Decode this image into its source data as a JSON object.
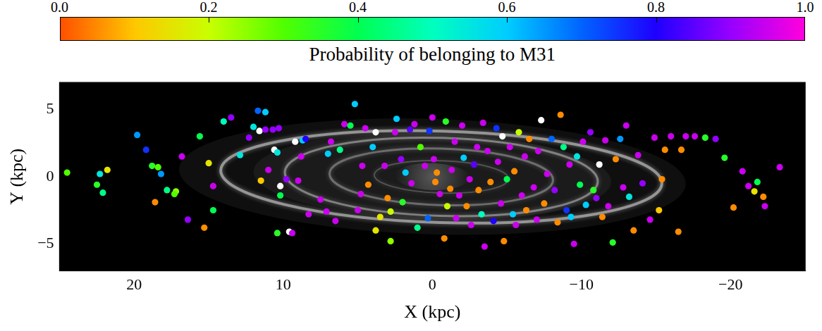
{
  "chart_data": {
    "type": "scatter",
    "x_label": "X (kpc)",
    "y_label": "Y (kpc)",
    "xlim": [
      25,
      -25
    ],
    "ylim": [
      -7,
      7
    ],
    "xticks": [
      20,
      10,
      0,
      {
        "value": -10,
        "label": "−10"
      },
      {
        "value": -20,
        "label": "−20"
      }
    ],
    "yticks": [
      {
        "value": -5,
        "label": "−5"
      },
      0,
      5
    ],
    "grid": false,
    "marker": "circle",
    "colorbar": {
      "label": "Probability of belonging to M31",
      "range": [
        0,
        1
      ],
      "ticks": [
        {
          "value": 0,
          "label": "0.0"
        },
        0.2,
        0.4,
        0.6,
        0.8,
        {
          "value": 1,
          "label": "1.0"
        }
      ]
    },
    "x": [
      24.5,
      22.5,
      22.3,
      22.1,
      21.8,
      19.8,
      19.2,
      18.8,
      18.4,
      18.2,
      18.6,
      17.8,
      17.2,
      17.3,
      16.8,
      16.4,
      15.6,
      15.3,
      15.0,
      14.7,
      14.7,
      14.0,
      13.5,
      12.9,
      12.3,
      12.0,
      11.7,
      11.2,
      11.6,
      11.2,
      10.7,
      10.3,
      10.6,
      10.4,
      10.2,
      10.4,
      9.6,
      9.4,
      9.2,
      8.7,
      8.5,
      8.3,
      11.5,
      11.0,
      10.2,
      9.8,
      9.0,
      8.8,
      7.5,
      7.1,
      7.0,
      6.8,
      6.5,
      6.2,
      5.9,
      5.5,
      5.2,
      5.0,
      4.8,
      4.7,
      4.5,
      4.3,
      4.0,
      3.8,
      3.8,
      3.5,
      3.2,
      3.0,
      2.8,
      2.8,
      2.5,
      2.4,
      2.1,
      2.0,
      1.8,
      1.5,
      1.4,
      1.2,
      1.0,
      0.8,
      0.5,
      0.3,
      0.2,
      0.0,
      -0.1,
      -0.2,
      -0.3,
      -0.5,
      -0.8,
      -0.9,
      -1.0,
      -1.2,
      -1.3,
      -1.5,
      -1.6,
      -1.8,
      -2.0,
      -2.1,
      -2.3,
      -2.5,
      -2.6,
      -2.8,
      -3.0,
      -3.1,
      -3.3,
      -3.4,
      -3.5,
      -3.7,
      -3.9,
      -4.1,
      -4.3,
      -4.4,
      -4.6,
      -4.7,
      -4.8,
      -5.0,
      -5.2,
      -5.4,
      -5.5,
      -5.6,
      -5.8,
      -6.0,
      -6.2,
      -6.3,
      -6.5,
      -6.8,
      -7.0,
      -7.1,
      -7.3,
      -7.5,
      -7.7,
      -8.0,
      -8.2,
      -8.4,
      -8.6,
      -8.8,
      -9.0,
      -9.2,
      -9.3,
      -9.5,
      -9.7,
      -9.9,
      -10.1,
      -10.3,
      -10.6,
      -10.8,
      -11.0,
      -11.2,
      -11.4,
      -11.6,
      -11.8,
      -12.1,
      -12.3,
      -12.6,
      -12.8,
      -13.0,
      -13.2,
      -13.5,
      -13.8,
      -14.1,
      -14.6,
      -14.9,
      -15.2,
      -15.4,
      -15.6,
      -16.0,
      -16.5,
      -17.0,
      -17.6,
      -18.3,
      -19.0,
      -19.6,
      -20.2,
      -20.8,
      -21.2,
      -21.6,
      -21.8,
      -22.2,
      -22.3,
      -23.3,
      -16.7
    ],
    "y": [
      0.3,
      -0.6,
      0.2,
      -1.2,
      0.5,
      3.1,
      2.0,
      0.8,
      0.7,
      0.2,
      -1.9,
      -1.0,
      -1.1,
      -1.3,
      1.5,
      -3.2,
      3.0,
      -3.8,
      1.0,
      -0.7,
      -2.5,
      4.1,
      4.4,
      1.6,
      2.9,
      3.7,
      4.9,
      4.8,
      3.4,
      3.5,
      3.5,
      3.6,
      2.0,
      1.8,
      -0.7,
      -4.2,
      -4.1,
      -4.2,
      2.6,
      2.7,
      2.8,
      -2.8,
      -0.3,
      0.5,
      -1.4,
      -0.2,
      -0.3,
      1.5,
      -1.7,
      -2.6,
      1.7,
      2.6,
      -3.3,
      2.0,
      3.9,
      3.8,
      5.4,
      -2.5,
      -1.3,
      0.8,
      3.6,
      -0.6,
      2.2,
      3.3,
      -4.0,
      -3.0,
      0.8,
      -1.6,
      -4.8,
      -2.6,
      3.3,
      4.3,
      1.3,
      -1.9,
      0.3,
      3.5,
      -0.5,
      3.9,
      -3.8,
      2.2,
      0.8,
      -3.1,
      3.4,
      4.4,
      1.3,
      -0.4,
      0.3,
      -1.3,
      -4.6,
      4.1,
      -2.2,
      -0.9,
      0.5,
      2.6,
      -3.1,
      -1.4,
      3.8,
      1.4,
      -2.2,
      -0.2,
      -3.6,
      0.9,
      2.2,
      -1.0,
      -2.8,
      4.0,
      -5.2,
      1.9,
      -0.4,
      -3.3,
      3.6,
      1.1,
      -2.0,
      3.0,
      -4.8,
      -0.2,
      2.2,
      -2.8,
      0.4,
      -3.6,
      3.3,
      -1.4,
      1.5,
      -2.5,
      2.8,
      -0.8,
      -3.2,
      1.9,
      4.2,
      -2.0,
      0.2,
      2.8,
      -1.0,
      -3.4,
      4.6,
      2.2,
      -2.5,
      0.9,
      -3.0,
      -5.0,
      1.5,
      -0.6,
      2.6,
      -2.1,
      3.3,
      -1.0,
      -1.6,
      0.9,
      -3.0,
      2.7,
      -2.2,
      -4.9,
      1.3,
      2.8,
      -0.8,
      3.8,
      -1.5,
      -4.0,
      1.6,
      -0.5,
      -3.2,
      2.9,
      -2.5,
      -0.2,
      2.0,
      3.0,
      -4.1,
      3.0,
      3.0,
      2.9,
      2.8,
      1.4,
      -2.3,
      0.4,
      -0.7,
      -1.1,
      -0.4,
      -1.5,
      -2.2,
      0.7,
      2.0
    ],
    "probability": [
      0.3,
      0.35,
      0.55,
      0.45,
      0.15,
      0.65,
      0.75,
      0.35,
      0.3,
      0.65,
      0.05,
      0.45,
      0.25,
      0.3,
      0.95,
      0.9,
      0.4,
      0.05,
      0.15,
      0.95,
      0.4,
      0.5,
      0.9,
      0.55,
      0.9,
      0.55,
      0.7,
      0.6,
      null,
      0.9,
      0.9,
      0.9,
      null,
      0.55,
      null,
      0.35,
      null,
      0.95,
      null,
      0.6,
      0.8,
      0.95,
      0.1,
      0.95,
      0.4,
      0.9,
      0.95,
      0.95,
      0.95,
      0.95,
      0.6,
      0.95,
      0.95,
      0.45,
      0.95,
      0.4,
      0.6,
      0.95,
      0.95,
      0.95,
      0.95,
      0.05,
      0.6,
      null,
      0.15,
      0.15,
      0.95,
      0.05,
      0.25,
      0.2,
      0.95,
      0.6,
      0.9,
      0.35,
      0.6,
      0.85,
      0.95,
      0.95,
      0.45,
      0.3,
      0.95,
      0.7,
      0.75,
      0.95,
      0.95,
      0.05,
      0.05,
      0.95,
      0.05,
      0.35,
      0.2,
      0.05,
      0.95,
      0.95,
      0.95,
      0.95,
      0.95,
      0.6,
      0.05,
      0.95,
      0.95,
      0.85,
      0.95,
      0.05,
      0.5,
      0.95,
      0.95,
      0.95,
      0.05,
      0.8,
      0.75,
      0.95,
      0.95,
      null,
      0.05,
      0.4,
      0.95,
      0.6,
      0.05,
      0.95,
      0.2,
      0.95,
      0.95,
      0.05,
      0.05,
      0.95,
      0.95,
      0.95,
      null,
      0.05,
      0.95,
      0.7,
      0.9,
      0.05,
      0.05,
      0.45,
      0.75,
      0.95,
      0.6,
      0.95,
      0.55,
      0.4,
      0.95,
      0.6,
      0.9,
      0.35,
      0.9,
      null,
      0.05,
      0.95,
      0.95,
      0.35,
      0.05,
      0.65,
      0.95,
      0.95,
      0.55,
      0.05,
      0.95,
      0.9,
      0.95,
      0.95,
      0.1,
      0.05,
      0.05,
      0.95,
      0.05,
      0.95,
      0.95,
      0.35,
      0.9,
      0.35,
      0.05,
      0.95,
      0.95,
      0.15,
      0.4,
      0.05,
      0.95,
      0.95,
      0.05
    ]
  }
}
